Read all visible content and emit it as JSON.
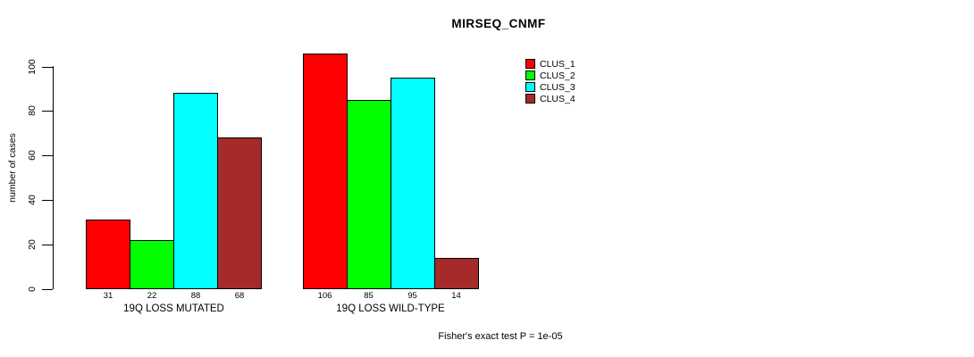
{
  "title": "MIRSEQ_CNMF",
  "y_axis": {
    "label": "number of cases",
    "ticks": [
      0,
      20,
      40,
      60,
      80,
      100
    ]
  },
  "legend": {
    "items": [
      {
        "label": "CLUS_1",
        "color": "#FF0000"
      },
      {
        "label": "CLUS_2",
        "color": "#00FF00"
      },
      {
        "label": "CLUS_3",
        "color": "#00FFFF"
      },
      {
        "label": "CLUS_4",
        "color": "#A52A2A"
      }
    ]
  },
  "annotation": "Fisher's exact test P = 1e-05",
  "chart_data": {
    "type": "bar",
    "title": "MIRSEQ_CNMF",
    "xlabel": "",
    "ylabel": "number of cases",
    "ylim": [
      0,
      106
    ],
    "yticks": [
      0,
      20,
      40,
      60,
      80,
      100
    ],
    "grid": false,
    "legend_position": "top-right",
    "categories": [
      "19Q LOSS MUTATED",
      "19Q LOSS WILD-TYPE"
    ],
    "series": [
      {
        "name": "CLUS_1",
        "color": "#FF0000",
        "values": [
          31,
          106
        ]
      },
      {
        "name": "CLUS_2",
        "color": "#00FF00",
        "values": [
          22,
          85
        ]
      },
      {
        "name": "CLUS_3",
        "color": "#00FFFF",
        "values": [
          88,
          95
        ]
      },
      {
        "name": "CLUS_4",
        "color": "#A52A2A",
        "values": [
          68,
          14
        ]
      }
    ],
    "bar_value_labels": [
      [
        31,
        22,
        88,
        68
      ],
      [
        106,
        85,
        95,
        14
      ]
    ],
    "annotation": "Fisher's exact test P = 1e-05"
  }
}
